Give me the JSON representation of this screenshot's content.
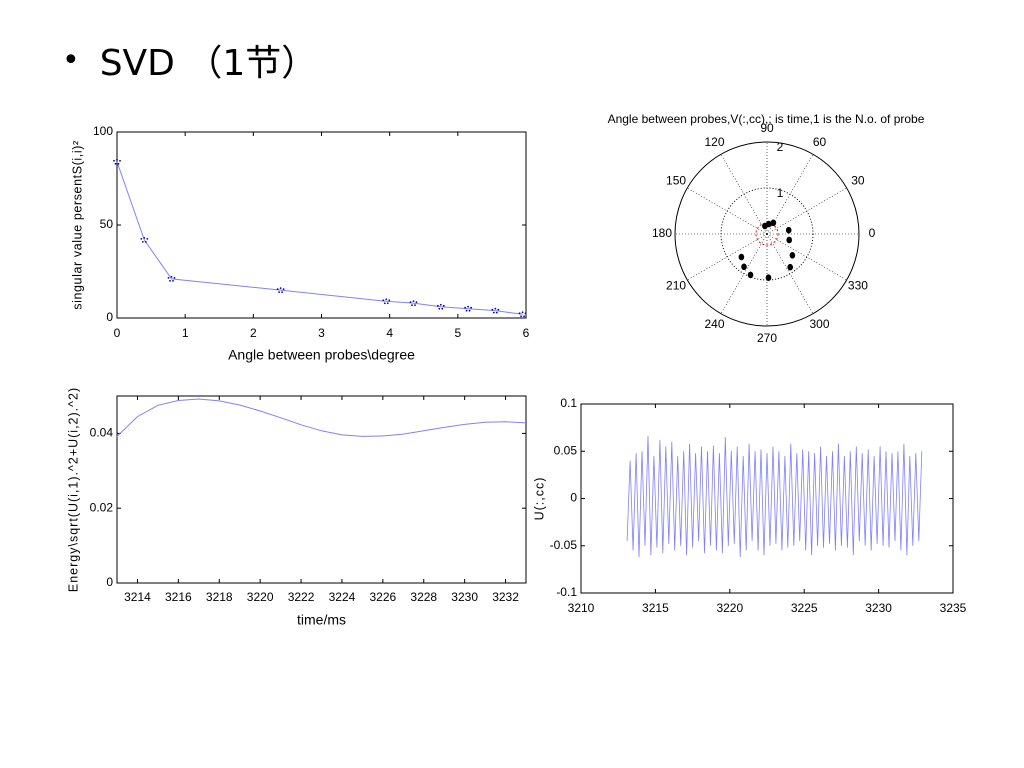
{
  "slide": {
    "bullet": "•",
    "title": "SVD （1节）"
  },
  "chart_data": [
    {
      "id": "singular-values",
      "type": "line",
      "title": "",
      "xlabel": "Angle between probes\\degree",
      "ylabel": "singular value persentS(i,i)²",
      "xlim": [
        0,
        6
      ],
      "ylim": [
        0,
        100
      ],
      "xticks": [
        "0",
        "1",
        "2",
        "3",
        "4",
        "5",
        "6"
      ],
      "yticks": [
        "0",
        "50",
        "100"
      ],
      "grid": false,
      "colors": {
        "line": "#8080ff",
        "marker": "#0000cc"
      },
      "series": [
        {
          "x": [
            0,
            0.4,
            0.8,
            2.4,
            3.95,
            4.35,
            4.75,
            5.15,
            5.55,
            5.95
          ],
          "y": [
            84,
            42,
            21,
            15,
            9,
            8,
            6,
            5,
            4,
            2
          ]
        }
      ]
    },
    {
      "id": "polar-angle",
      "type": "scatter",
      "title": "Angle between probes,V(:,cc),: is time,1 is the N.o. of probe",
      "rlim": [
        0,
        2
      ],
      "rticks": [
        "1",
        "2"
      ],
      "angle_ticks": [
        "0",
        "30",
        "60",
        "90",
        "120",
        "150",
        "180",
        "210",
        "240",
        "270",
        "300",
        "330"
      ],
      "colors": {
        "marker": "#000000",
        "inner": "#ff0000"
      },
      "series": [
        {
          "r": [
            0.18,
            0.22,
            0.28,
            0.48,
            0.5,
            0.72,
            0.88,
            0.95,
            0.96,
            0.87,
            0.75
          ],
          "theta": [
            105,
            80,
            60,
            10,
            345,
            320,
            305,
            272,
            248,
            235,
            222
          ]
        }
      ]
    },
    {
      "id": "energy",
      "type": "line",
      "title": "",
      "xlabel": "time/ms",
      "ylabel": "Energy\\sqrt(U(i,1).^2+U(i,2).^2)",
      "xlim": [
        3213,
        3233
      ],
      "ylim": [
        0,
        0.05
      ],
      "xticks": [
        "3214",
        "3216",
        "3218",
        "3220",
        "3222",
        "3224",
        "3226",
        "3228",
        "3230",
        "3232"
      ],
      "yticks": [
        "0",
        "0.02",
        "0.04"
      ],
      "grid": false,
      "colors": {
        "line": "#8080ff"
      },
      "series": [
        {
          "x": [
            3213,
            3214,
            3215,
            3216,
            3217,
            3218,
            3219,
            3220,
            3221,
            3222,
            3223,
            3224,
            3225,
            3226,
            3227,
            3228,
            3229,
            3230,
            3231,
            3232,
            3233
          ],
          "y": [
            0.0392,
            0.0445,
            0.0475,
            0.0488,
            0.0492,
            0.0487,
            0.0476,
            0.046,
            0.0442,
            0.0423,
            0.0407,
            0.0396,
            0.0392,
            0.0393,
            0.0398,
            0.0407,
            0.0416,
            0.0424,
            0.043,
            0.0431,
            0.0428
          ]
        }
      ]
    },
    {
      "id": "u-signal",
      "type": "line",
      "title": "",
      "xlabel": "",
      "ylabel": "U(:,cc)",
      "xlim": [
        3210,
        3235
      ],
      "ylim": [
        -0.1,
        0.1
      ],
      "xticks": [
        "3210",
        "3215",
        "3220",
        "3225",
        "3230",
        "3235"
      ],
      "yticks": [
        "-0.1",
        "-0.05",
        "0",
        "0.05",
        "0.1"
      ],
      "grid": false,
      "colors": {
        "line": "#8080ff"
      },
      "series": [
        {
          "x": [
            3213.1,
            3213.3,
            3213.5,
            3213.7,
            3213.9,
            3214.1,
            3214.3,
            3214.5,
            3214.7,
            3214.9,
            3215.1,
            3215.3,
            3215.5,
            3215.7,
            3215.9,
            3216.1,
            3216.3,
            3216.5,
            3216.7,
            3216.9,
            3217.1,
            3217.3,
            3217.5,
            3217.7,
            3217.9,
            3218.1,
            3218.3,
            3218.5,
            3218.7,
            3218.9,
            3219.1,
            3219.3,
            3219.5,
            3219.7,
            3219.9,
            3220.1,
            3220.3,
            3220.5,
            3220.7,
            3220.9,
            3221.1,
            3221.3,
            3221.5,
            3221.7,
            3221.9,
            3222.1,
            3222.3,
            3222.5,
            3222.7,
            3222.9,
            3223.1,
            3223.3,
            3223.5,
            3223.7,
            3223.9,
            3224.1,
            3224.3,
            3224.5,
            3224.7,
            3224.9,
            3225.1,
            3225.3,
            3225.5,
            3225.7,
            3225.9,
            3226.1,
            3226.3,
            3226.5,
            3226.7,
            3226.9,
            3227.1,
            3227.3,
            3227.5,
            3227.7,
            3227.9,
            3228.1,
            3228.3,
            3228.5,
            3228.7,
            3228.9,
            3229.1,
            3229.3,
            3229.5,
            3229.7,
            3229.9,
            3230.1,
            3230.3,
            3230.5,
            3230.7,
            3230.9,
            3231.1,
            3231.3,
            3231.5,
            3231.7,
            3231.9,
            3232.1,
            3232.3,
            3232.5,
            3232.7,
            3232.9
          ],
          "y": [
            -0.045,
            0.04,
            -0.055,
            0.048,
            -0.062,
            0.05,
            -0.05,
            0.066,
            -0.06,
            0.045,
            -0.052,
            0.062,
            -0.058,
            0.055,
            -0.048,
            0.06,
            -0.055,
            0.045,
            -0.05,
            0.05,
            -0.06,
            0.058,
            -0.052,
            0.048,
            -0.045,
            0.055,
            -0.058,
            0.05,
            -0.05,
            0.056,
            -0.055,
            0.048,
            -0.058,
            0.065,
            -0.05,
            0.05,
            -0.048,
            0.055,
            -0.062,
            0.045,
            -0.055,
            0.058,
            -0.045,
            0.05,
            -0.055,
            0.052,
            -0.06,
            0.048,
            -0.05,
            0.055,
            -0.048,
            0.05,
            -0.055,
            0.045,
            -0.052,
            0.058,
            -0.05,
            0.048,
            -0.045,
            0.052,
            -0.055,
            0.05,
            -0.06,
            0.048,
            -0.05,
            0.055,
            -0.052,
            0.045,
            -0.048,
            0.05,
            -0.055,
            0.058,
            -0.05,
            0.045,
            -0.052,
            0.05,
            -0.06,
            0.055,
            -0.045,
            0.048,
            -0.05,
            0.052,
            -0.055,
            0.045,
            -0.048,
            0.055,
            -0.05,
            0.05,
            -0.052,
            0.048,
            -0.045,
            0.05,
            -0.055,
            0.058,
            -0.06,
            0.045,
            -0.05,
            0.048,
            -0.045,
            0.05
          ]
        }
      ]
    }
  ]
}
